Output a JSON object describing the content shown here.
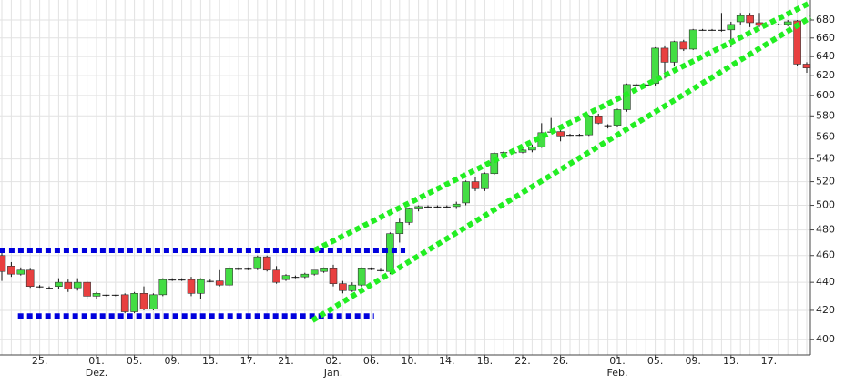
{
  "chart_data": {
    "type": "candlestick",
    "log_scale": true,
    "grid": true,
    "up_color": "#44dd44",
    "down_color": "#e84040",
    "ylim": [
      390,
      703
    ],
    "yticks": [
      400,
      420,
      440,
      460,
      480,
      500,
      520,
      540,
      560,
      580,
      600,
      620,
      640,
      660,
      680
    ],
    "categories": [
      null,
      null,
      null,
      null,
      "25.",
      null,
      null,
      null,
      null,
      null,
      "01.",
      null,
      null,
      null,
      "05.",
      null,
      null,
      null,
      "09.",
      null,
      null,
      null,
      "13.",
      null,
      null,
      null,
      "17.",
      null,
      null,
      null,
      "21.",
      null,
      null,
      null,
      null,
      "02.",
      null,
      null,
      null,
      "06.",
      null,
      null,
      null,
      "10.",
      null,
      null,
      null,
      "14.",
      null,
      null,
      null,
      "18.",
      null,
      null,
      null,
      "22.",
      null,
      null,
      null,
      "26.",
      null,
      null,
      null,
      null,
      null,
      "01.",
      null,
      null,
      null,
      "05.",
      null,
      null,
      null,
      "09.",
      null,
      null,
      null,
      "13.",
      null,
      null,
      null,
      "17.",
      null,
      null,
      null,
      null
    ],
    "month_labels": [
      null,
      null,
      null,
      null,
      null,
      null,
      null,
      null,
      null,
      null,
      "Dez.",
      null,
      null,
      null,
      null,
      null,
      null,
      null,
      null,
      null,
      null,
      null,
      null,
      null,
      null,
      null,
      null,
      null,
      null,
      null,
      null,
      null,
      null,
      null,
      null,
      "Jan.",
      null,
      null,
      null,
      null,
      null,
      null,
      null,
      null,
      null,
      null,
      null,
      null,
      null,
      null,
      null,
      null,
      null,
      null,
      null,
      null,
      null,
      null,
      null,
      null,
      null,
      null,
      null,
      null,
      null,
      "Feb.",
      null,
      null,
      null,
      null,
      null,
      null,
      null,
      null,
      null,
      null,
      null,
      null,
      null,
      null,
      null,
      null,
      null,
      null,
      null,
      null
    ],
    "candles": [
      [
        460,
        464,
        441,
        448
      ],
      [
        452,
        455,
        444,
        446
      ],
      [
        446,
        451,
        445,
        449
      ],
      [
        449,
        450,
        436,
        437
      ],
      [
        437,
        438,
        436,
        437
      ],
      [
        436,
        437,
        435,
        436
      ],
      [
        437,
        443,
        435,
        440
      ],
      [
        440,
        442,
        433,
        435
      ],
      [
        436,
        443,
        434,
        440
      ],
      [
        440,
        441,
        428,
        430
      ],
      [
        430,
        433,
        428,
        432
      ],
      [
        431,
        431,
        430,
        431
      ],
      [
        431,
        431,
        430,
        431
      ],
      [
        431,
        432,
        418,
        419
      ],
      [
        419,
        433,
        418,
        432
      ],
      [
        432,
        437,
        420,
        421
      ],
      [
        421,
        432,
        420,
        431
      ],
      [
        431,
        443,
        430,
        442
      ],
      [
        442,
        443,
        441,
        442
      ],
      [
        442,
        443,
        441,
        442
      ],
      [
        442,
        444,
        430,
        432
      ],
      [
        432,
        443,
        428,
        442
      ],
      [
        441,
        442,
        440,
        441
      ],
      [
        441,
        449,
        437,
        438
      ],
      [
        438,
        452,
        437,
        450
      ],
      [
        450,
        451,
        449,
        450
      ],
      [
        450,
        451,
        449,
        450
      ],
      [
        450,
        460,
        449,
        459
      ],
      [
        459,
        460,
        448,
        449
      ],
      [
        449,
        452,
        439,
        440
      ],
      [
        442,
        446,
        441,
        445
      ],
      [
        444,
        445,
        443,
        444
      ],
      [
        444,
        447,
        443,
        446
      ],
      [
        446,
        449,
        445,
        449
      ],
      [
        448,
        451,
        447,
        450
      ],
      [
        450,
        453,
        437,
        439
      ],
      [
        439,
        441,
        432,
        434
      ],
      [
        434,
        440,
        433,
        438
      ],
      [
        438,
        451,
        437,
        450
      ],
      [
        450,
        451,
        449,
        450
      ],
      [
        449,
        450,
        448,
        449
      ],
      [
        448,
        478,
        446,
        477
      ],
      [
        477,
        489,
        470,
        486
      ],
      [
        486,
        498,
        484,
        497
      ],
      [
        497,
        500,
        495,
        499
      ],
      [
        499,
        500,
        498,
        499
      ],
      [
        499,
        500,
        498,
        499
      ],
      [
        499,
        500,
        498,
        499
      ],
      [
        499,
        503,
        497,
        501
      ],
      [
        502,
        521,
        500,
        520
      ],
      [
        520,
        524,
        512,
        514
      ],
      [
        514,
        528,
        512,
        527
      ],
      [
        527,
        546,
        526,
        545
      ],
      [
        546,
        547,
        545,
        546
      ],
      [
        546,
        547,
        545,
        546
      ],
      [
        546,
        549,
        545,
        548
      ],
      [
        548,
        553,
        546,
        551
      ],
      [
        551,
        573,
        550,
        564
      ],
      [
        565,
        578,
        564,
        565
      ],
      [
        565,
        567,
        556,
        561
      ],
      [
        562,
        563,
        561,
        562
      ],
      [
        562,
        563,
        561,
        562
      ],
      [
        562,
        581,
        561,
        580
      ],
      [
        580,
        582,
        572,
        573
      ],
      [
        571,
        572,
        568,
        571
      ],
      [
        571,
        587,
        569,
        586
      ],
      [
        586,
        612,
        584,
        611
      ],
      [
        611,
        612,
        610,
        611
      ],
      [
        611,
        612,
        610,
        611
      ],
      [
        612,
        650,
        610,
        649
      ],
      [
        649,
        652,
        617,
        634
      ],
      [
        634,
        657,
        630,
        656
      ],
      [
        656,
        658,
        646,
        648
      ],
      [
        648,
        670,
        647,
        669
      ],
      [
        669,
        670,
        668,
        669
      ],
      [
        669,
        670,
        668,
        669
      ],
      [
        669,
        688,
        667,
        669
      ],
      [
        669,
        678,
        650,
        675
      ],
      [
        678,
        688,
        675,
        685
      ],
      [
        685,
        688,
        672,
        677
      ],
      [
        677,
        688,
        672,
        674
      ],
      [
        675,
        676,
        674,
        675
      ],
      [
        675,
        676,
        674,
        675
      ],
      [
        675,
        680,
        673,
        678
      ],
      [
        679,
        680,
        630,
        632
      ],
      [
        632,
        634,
        623,
        628
      ]
    ],
    "trendlines": [
      {
        "color": "#0000dd",
        "x": [
          -0.2,
          42.6
        ],
        "values": [
          464,
          464
        ]
      },
      {
        "color": "#0000dd",
        "x": [
          1.7,
          39.3
        ],
        "values": [
          416,
          416
        ]
      },
      {
        "color": "#22ee22",
        "x": [
          33,
          85.4
        ],
        "values": [
          464,
          700
        ]
      },
      {
        "color": "#22ee22",
        "x": [
          32.8,
          85.4
        ],
        "values": [
          413,
          683
        ]
      }
    ]
  }
}
